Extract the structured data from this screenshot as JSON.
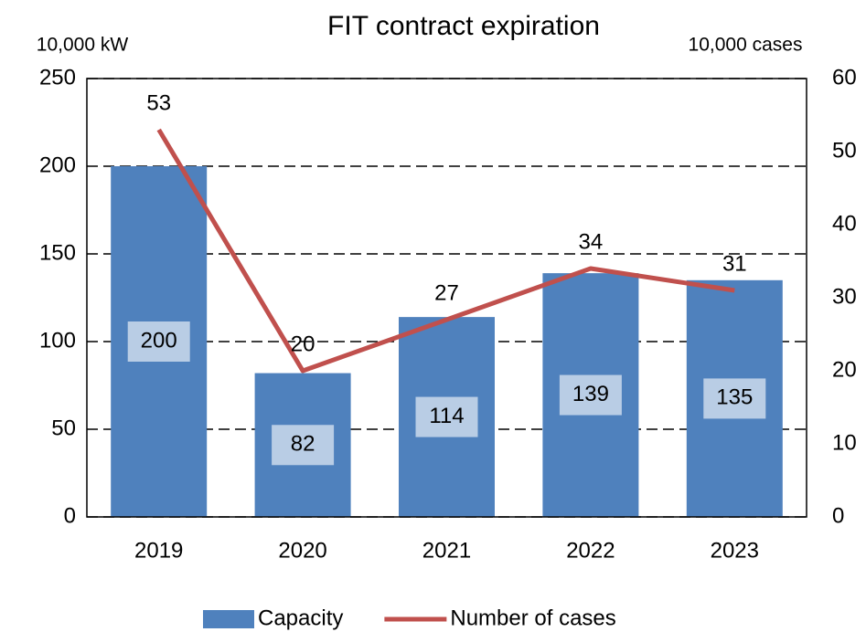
{
  "chart_data": {
    "type": "bar",
    "title": "FIT contract expiration",
    "y_label": "10,000 kW",
    "y2_label": "10,000 cases",
    "categories": [
      "2019",
      "2020",
      "2021",
      "2022",
      "2023"
    ],
    "series": [
      {
        "name": "Capacity",
        "type": "bar",
        "color": "#4f81bd",
        "values": [
          200,
          82,
          114,
          139,
          135
        ]
      },
      {
        "name": "Number of cases",
        "type": "line",
        "axis": "y2",
        "color": "#c0504d",
        "values": [
          53,
          20,
          27,
          34,
          31
        ]
      }
    ],
    "ylim": [
      0,
      250
    ],
    "yticks": [
      0,
      50,
      100,
      150,
      200,
      250
    ],
    "y2lim": [
      0,
      60
    ],
    "y2ticks": [
      0,
      10,
      20,
      30,
      40,
      50,
      60
    ],
    "grid": true,
    "legend": "bottom"
  }
}
